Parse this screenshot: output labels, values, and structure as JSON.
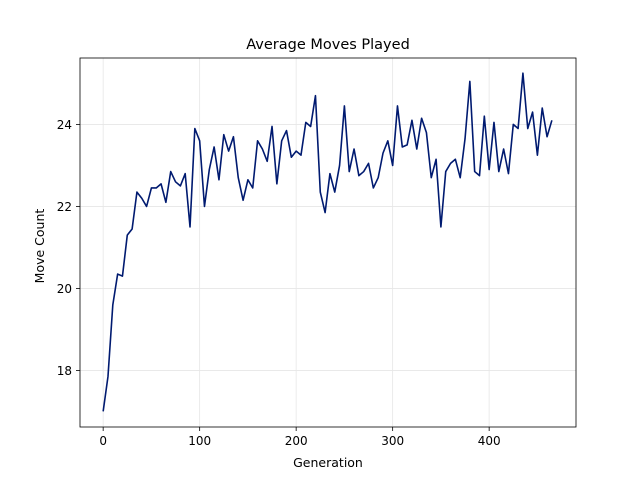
{
  "chart_data": {
    "type": "line",
    "title": "Average Moves Played",
    "xlabel": "Generation",
    "ylabel": "Move Count",
    "xlim": [
      -24,
      490
    ],
    "ylim": [
      16.62,
      25.62
    ],
    "xticks": [
      0,
      100,
      200,
      300,
      400
    ],
    "yticks": [
      18,
      20,
      22,
      24
    ],
    "grid": true,
    "series": [
      {
        "color": "#001a70",
        "x": [
          0,
          5,
          10,
          15,
          20,
          25,
          30,
          35,
          40,
          45,
          50,
          55,
          60,
          65,
          70,
          75,
          80,
          85,
          90,
          95,
          100,
          105,
          110,
          115,
          120,
          125,
          130,
          135,
          140,
          145,
          150,
          155,
          160,
          165,
          170,
          175,
          180,
          185,
          190,
          195,
          200,
          205,
          210,
          215,
          220,
          225,
          230,
          235,
          240,
          245,
          250,
          255,
          260,
          265,
          270,
          275,
          280,
          285,
          290,
          295,
          300,
          305,
          310,
          315,
          320,
          325,
          330,
          335,
          340,
          345,
          350,
          355,
          360,
          365,
          370,
          375,
          380,
          385,
          390,
          395,
          400,
          405,
          410,
          415,
          420,
          425,
          430,
          435,
          440,
          445,
          450,
          455,
          460,
          465
        ],
        "y": [
          17.0,
          17.85,
          19.6,
          20.35,
          20.3,
          21.3,
          21.45,
          22.35,
          22.2,
          22.0,
          22.45,
          22.45,
          22.55,
          22.1,
          22.85,
          22.6,
          22.5,
          22.8,
          21.5,
          23.9,
          23.6,
          22.0,
          22.9,
          23.45,
          22.65,
          23.75,
          23.35,
          23.7,
          22.7,
          22.15,
          22.65,
          22.45,
          23.6,
          23.4,
          23.1,
          23.95,
          22.55,
          23.6,
          23.85,
          23.2,
          23.35,
          23.25,
          24.05,
          23.95,
          24.7,
          22.35,
          21.85,
          22.8,
          22.35,
          23.0,
          24.45,
          22.85,
          23.4,
          22.75,
          22.85,
          23.05,
          22.45,
          22.7,
          23.3,
          23.6,
          23.0,
          24.45,
          23.45,
          23.5,
          24.1,
          23.4,
          24.15,
          23.8,
          22.7,
          23.15,
          21.5,
          22.85,
          23.05,
          23.15,
          22.7,
          23.65,
          25.05,
          22.85,
          22.75,
          24.2,
          22.9,
          24.05,
          22.85,
          23.4,
          22.8,
          24.0,
          23.9,
          25.25,
          23.9,
          24.3,
          23.25,
          24.4,
          23.7,
          24.1
        ]
      }
    ]
  }
}
